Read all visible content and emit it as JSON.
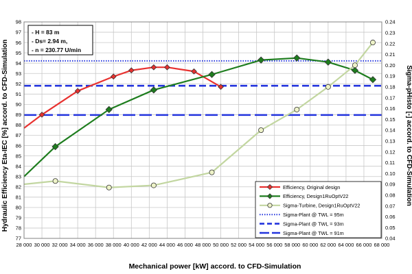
{
  "chart_data": {
    "type": "line",
    "xlabel": "Mechanical power [kW] accord. to CFD-Simulation",
    "ylabel_left": "Hydraulic Efficiency  Eta-IEC [%] accord. to CFD-Simulation",
    "ylabel_right": "Sigma-pHisto [-] accord. to CFD-Simulation",
    "xlim": [
      28000,
      68000
    ],
    "ylim_left": [
      77,
      98
    ],
    "ylim_right": [
      0.04,
      0.24
    ],
    "grid": true,
    "legend_position": "bottom-right",
    "x_ticks": [
      {
        "value": 28000,
        "label": "28 000"
      },
      {
        "value": 30000,
        "label": "30 000"
      },
      {
        "value": 32000,
        "label": "32 000"
      },
      {
        "value": 34000,
        "label": "34 000"
      },
      {
        "value": 36000,
        "label": "36 000"
      },
      {
        "value": 38000,
        "label": "38 000"
      },
      {
        "value": 40000,
        "label": "40 000"
      },
      {
        "value": 42000,
        "label": "42 000"
      },
      {
        "value": 44000,
        "label": "44 000"
      },
      {
        "value": 46000,
        "label": "46 000"
      },
      {
        "value": 48000,
        "label": "48 000"
      },
      {
        "value": 50000,
        "label": "50 000"
      },
      {
        "value": 52000,
        "label": "52 000"
      },
      {
        "value": 54000,
        "label": "54 000"
      },
      {
        "value": 56000,
        "label": "56 000"
      },
      {
        "value": 58000,
        "label": "58 000"
      },
      {
        "value": 60000,
        "label": "60 000"
      },
      {
        "value": 62000,
        "label": "62 000"
      },
      {
        "value": 64000,
        "label": "64 000"
      },
      {
        "value": 66000,
        "label": "66 000"
      },
      {
        "value": 68000,
        "label": "68 000"
      }
    ],
    "y_left_ticks": [
      {
        "value": 77,
        "label": "77"
      },
      {
        "value": 78,
        "label": "78"
      },
      {
        "value": 79,
        "label": "79"
      },
      {
        "value": 80,
        "label": "80"
      },
      {
        "value": 81,
        "label": "81"
      },
      {
        "value": 82,
        "label": "82"
      },
      {
        "value": 83,
        "label": "83"
      },
      {
        "value": 84,
        "label": "84"
      },
      {
        "value": 85,
        "label": "85"
      },
      {
        "value": 86,
        "label": "86"
      },
      {
        "value": 87,
        "label": "87"
      },
      {
        "value": 88,
        "label": "88"
      },
      {
        "value": 89,
        "label": "89"
      },
      {
        "value": 90,
        "label": "90"
      },
      {
        "value": 91,
        "label": "91"
      },
      {
        "value": 92,
        "label": "92"
      },
      {
        "value": 93,
        "label": "93"
      },
      {
        "value": 94,
        "label": "94"
      },
      {
        "value": 95,
        "label": "95"
      },
      {
        "value": 96,
        "label": "96"
      },
      {
        "value": 97,
        "label": "97"
      },
      {
        "value": 98,
        "label": "98"
      }
    ],
    "y_right_ticks": [
      {
        "value": 0.04,
        "label": "0.04"
      },
      {
        "value": 0.05,
        "label": "0.05"
      },
      {
        "value": 0.06,
        "label": "0.06"
      },
      {
        "value": 0.07,
        "label": "0.07"
      },
      {
        "value": 0.08,
        "label": "0.08"
      },
      {
        "value": 0.09,
        "label": "0.09"
      },
      {
        "value": 0.1,
        "label": "0.10"
      },
      {
        "value": 0.11,
        "label": "0.11"
      },
      {
        "value": 0.12,
        "label": "0.12"
      },
      {
        "value": 0.13,
        "label": "0.13"
      },
      {
        "value": 0.14,
        "label": "0.14"
      },
      {
        "value": 0.15,
        "label": "0.15"
      },
      {
        "value": 0.16,
        "label": "0.16"
      },
      {
        "value": 0.17,
        "label": "0.17"
      },
      {
        "value": 0.18,
        "label": "0.18"
      },
      {
        "value": 0.19,
        "label": "0.19"
      },
      {
        "value": 0.2,
        "label": "0.20"
      },
      {
        "value": 0.21,
        "label": "0.21"
      },
      {
        "value": 0.22,
        "label": "0.22"
      },
      {
        "value": 0.23,
        "label": "0.23"
      },
      {
        "value": 0.24,
        "label": "0.24"
      }
    ],
    "annotation_lines": [
      "- H = 83 m",
      "- Ds= 2.94 m,",
      "- n = 230.77 U/min"
    ],
    "series": [
      {
        "name": "Efficiency, Original design",
        "axis": "left",
        "style": "line-marker",
        "color": "#e8312f",
        "marker": "diamond",
        "marker_fill": "#e8312f",
        "points": [
          [
            28000,
            87.7
          ],
          [
            30000,
            89.0
          ],
          [
            34000,
            91.3
          ],
          [
            38000,
            92.7
          ],
          [
            40000,
            93.3
          ],
          [
            42500,
            93.6
          ],
          [
            44000,
            93.6
          ],
          [
            47000,
            93.2
          ],
          [
            50000,
            91.7
          ]
        ]
      },
      {
        "name": "Efficiency, Design1RuOptV22",
        "axis": "left",
        "style": "line-marker",
        "color": "#1e7d1e",
        "marker": "diamond",
        "marker_fill": "#1e7d1e",
        "points": [
          [
            28000,
            83.0
          ],
          [
            31500,
            85.9
          ],
          [
            37500,
            89.5
          ],
          [
            42500,
            91.4
          ],
          [
            49000,
            92.9
          ],
          [
            54500,
            94.3
          ],
          [
            58500,
            94.5
          ],
          [
            62000,
            94.1
          ],
          [
            65000,
            93.3
          ],
          [
            67000,
            92.4
          ]
        ]
      },
      {
        "name": "Sigma-Turbine, Design1RuOptV22",
        "axis": "right",
        "style": "line-marker",
        "color": "#c2d6a0",
        "marker": "circle",
        "marker_fill": "#eef3c8",
        "points": [
          [
            28000,
            0.09
          ],
          [
            31500,
            0.093
          ],
          [
            37500,
            0.087
          ],
          [
            42500,
            0.089
          ],
          [
            49000,
            0.101
          ],
          [
            54500,
            0.14
          ],
          [
            58500,
            0.159
          ],
          [
            62000,
            0.18
          ],
          [
            65000,
            0.2
          ],
          [
            67000,
            0.221
          ]
        ]
      },
      {
        "name": "Sigma-Plant @ TWL = 95m",
        "axis": "right",
        "style": "dotted",
        "color": "#2233dd",
        "value": 0.204
      },
      {
        "name": "Sigma-Plant @ TWL = 93m",
        "axis": "right",
        "style": "dashed",
        "color": "#2233dd",
        "value": 0.181
      },
      {
        "name": "Sigma-Plant @ TWL = 91m",
        "axis": "right",
        "style": "long-dash",
        "color": "#2233dd",
        "value": 0.154
      }
    ]
  }
}
